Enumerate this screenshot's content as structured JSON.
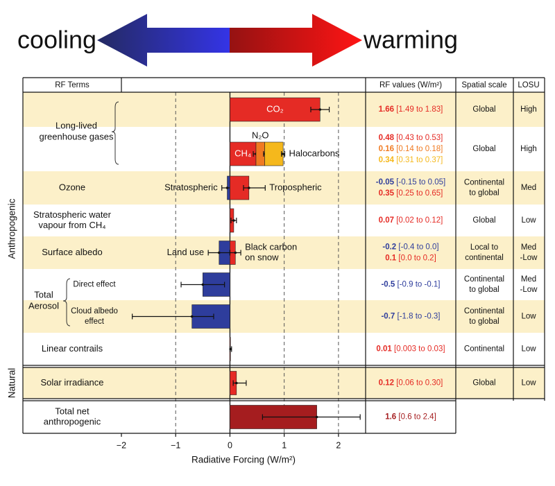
{
  "header": {
    "left": "cooling",
    "right": "warming"
  },
  "chart_data": {
    "type": "bar",
    "orientation": "horizontal",
    "columns": [
      "RF Terms",
      "RF values (W/m²)",
      "Spatial scale",
      "LOSU"
    ],
    "xlabel": "Radiative Forcing (W/m²)",
    "xlim": [
      -2,
      2.5
    ],
    "xticks": [
      {
        "value": -2,
        "label": "−2"
      },
      {
        "value": -1,
        "label": "−1"
      },
      0,
      1,
      2
    ],
    "grid": true,
    "sections": [
      {
        "name": "Anthropogenic",
        "groups": [
          {
            "label": [
              "Long-lived",
              "greenhouse gases"
            ],
            "rows": [
              {
                "terms": [
                  {
                    "name": "CO₂",
                    "value": 1.66,
                    "range": [
                      1.49,
                      1.83
                    ],
                    "range_label": "[1.49 to 1.83]",
                    "color": "#e52b25",
                    "label_pos": "inside"
                  }
                ],
                "scale": "Global",
                "losu": "High"
              },
              {
                "stacked": true,
                "terms": [
                  {
                    "name": "CH₄",
                    "value": 0.48,
                    "range": [
                      0.43,
                      0.53
                    ],
                    "range_label": "[0.43 to 0.53]",
                    "color": "#e52b25",
                    "label_pos": "inside"
                  },
                  {
                    "name": "N₂O",
                    "value": 0.16,
                    "range": [
                      0.14,
                      0.18
                    ],
                    "range_label": "[0.14 to 0.18]",
                    "color": "#f07a22",
                    "label_pos": "above"
                  },
                  {
                    "name": "Halocarbons",
                    "value": 0.34,
                    "range": [
                      0.31,
                      0.37
                    ],
                    "range_label": "[0.31 to 0.37]",
                    "color": "#f5b81c",
                    "label_pos": "right"
                  }
                ],
                "scale": "Global",
                "losu": "High"
              }
            ]
          },
          {
            "rows": [
              {
                "label": "Ozone",
                "terms": [
                  {
                    "name": "Stratospheric",
                    "value": -0.05,
                    "range": [
                      -0.15,
                      0.05
                    ],
                    "range_label": "[-0.15 to 0.05]",
                    "color": "#2e3d9c",
                    "label_pos": "left"
                  },
                  {
                    "name": "Tropospheric",
                    "value": 0.35,
                    "range": [
                      0.25,
                      0.65
                    ],
                    "range_label": "[0.25 to 0.65]",
                    "color": "#e52b25",
                    "label_pos": "right"
                  }
                ],
                "scale": [
                  "Continental",
                  "to global"
                ],
                "losu": "Med"
              }
            ]
          },
          {
            "rows": [
              {
                "label": [
                  "Stratospheric water",
                  "vapour from CH₄"
                ],
                "terms": [
                  {
                    "value": 0.07,
                    "range": [
                      0.02,
                      0.12
                    ],
                    "range_label": "[0.02 to 0.12]",
                    "color": "#e52b25"
                  }
                ],
                "scale": "Global",
                "losu": "Low"
              }
            ]
          },
          {
            "rows": [
              {
                "label": "Surface albedo",
                "terms": [
                  {
                    "name": "Land use",
                    "value": -0.2,
                    "range": [
                      -0.4,
                      0.0
                    ],
                    "range_label": "[-0.4 to 0.0]",
                    "color": "#2e3d9c",
                    "label_pos": "left"
                  },
                  {
                    "name": [
                      "Black carbon",
                      "on snow"
                    ],
                    "value": 0.1,
                    "range": [
                      0.0,
                      0.2
                    ],
                    "range_label": "[0.0 to 0.2]",
                    "color": "#e52b25",
                    "label_pos": "right"
                  }
                ],
                "scale": [
                  "Local to",
                  "continental"
                ],
                "losu": [
                  "Med",
                  "-Low"
                ]
              }
            ]
          },
          {
            "label": [
              "Total",
              "Aerosol"
            ],
            "rows": [
              {
                "label": "Direct effect",
                "terms": [
                  {
                    "value": -0.5,
                    "range": [
                      -0.9,
                      -0.1
                    ],
                    "range_label": "[-0.9 to -0.1]",
                    "color": "#2e3d9c"
                  }
                ],
                "scale": [
                  "Continental",
                  "to global"
                ],
                "losu": [
                  "Med",
                  "-Low"
                ]
              },
              {
                "label": [
                  "Cloud albedo",
                  "effect"
                ],
                "terms": [
                  {
                    "value": -0.7,
                    "range": [
                      -1.8,
                      -0.3
                    ],
                    "range_label": "[-1.8 to -0.3]",
                    "color": "#2e3d9c"
                  }
                ],
                "scale": [
                  "Continental",
                  "to global"
                ],
                "losu": "Low"
              }
            ]
          },
          {
            "rows": [
              {
                "label": "Linear contrails",
                "terms": [
                  {
                    "value": 0.01,
                    "range": [
                      0.003,
                      0.03
                    ],
                    "range_label": "[0.003 to 0.03]",
                    "color": "#e52b25"
                  }
                ],
                "scale": "Continental",
                "losu": "Low"
              }
            ]
          }
        ]
      },
      {
        "name": "Natural",
        "groups": [
          {
            "rows": [
              {
                "label": "Solar irradiance",
                "terms": [
                  {
                    "value": 0.12,
                    "range": [
                      0.06,
                      0.3
                    ],
                    "range_label": "[0.06 to 0.30]",
                    "color": "#e52b25"
                  }
                ],
                "scale": "Global",
                "losu": "Low"
              }
            ]
          }
        ]
      },
      {
        "groups": [
          {
            "rows": [
              {
                "label": [
                  "Total net",
                  "anthropogenic"
                ],
                "terms": [
                  {
                    "value": 1.6,
                    "range": [
                      0.6,
                      2.4
                    ],
                    "range_label": "[0.6 to 2.4]",
                    "color": "#a51d1f"
                  }
                ]
              }
            ]
          }
        ]
      }
    ]
  }
}
